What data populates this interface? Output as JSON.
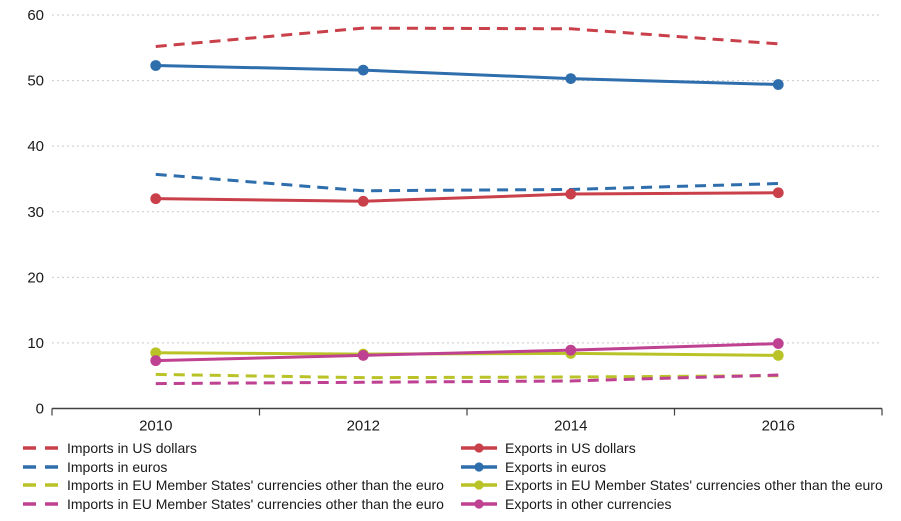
{
  "chart_data": {
    "type": "line",
    "title": "",
    "x_categories": [
      "2010",
      "2012",
      "2014",
      "2016"
    ],
    "ylim": [
      0,
      60
    ],
    "y_ticks": [
      0,
      10,
      20,
      30,
      40,
      50,
      60
    ],
    "grid": "horizontal dashed gridlines",
    "legend_position": "bottom, two columns: dashed import series left, solid export series right",
    "colors": {
      "red": "#c9404a",
      "blue": "#2e6ead",
      "yellow_green": "#b9c327",
      "magenta": "#bf4191",
      "gridline": "#c9c9c9",
      "axis": "#404040",
      "tick_text": "#1a1a1a"
    },
    "series": [
      {
        "name": "Imports in US dollars",
        "color": "#c9404a",
        "dash": true,
        "marker": false,
        "values": [
          55.2,
          58.0,
          57.9,
          55.6
        ]
      },
      {
        "name": "Imports in euros",
        "color": "#2e6ead",
        "dash": true,
        "marker": false,
        "values": [
          35.7,
          33.2,
          33.4,
          34.3
        ]
      },
      {
        "name": "Imports in EU Member States' currencies other than the euro",
        "color": "#b9c327",
        "dash": true,
        "marker": false,
        "values": [
          5.2,
          4.7,
          4.8,
          5.0
        ]
      },
      {
        "name": "Imports in EU Member States' currencies other than the euro",
        "color": "#bf4191",
        "dash": true,
        "marker": false,
        "values": [
          3.8,
          4.0,
          4.2,
          5.1
        ]
      },
      {
        "name": "Exports in US dollars",
        "color": "#c9404a",
        "dash": false,
        "marker": true,
        "values": [
          32.0,
          31.6,
          32.7,
          32.9
        ]
      },
      {
        "name": "Exports in euros",
        "color": "#2e6ead",
        "dash": false,
        "marker": true,
        "values": [
          52.3,
          51.6,
          50.3,
          49.4
        ]
      },
      {
        "name": "Exports in EU Member States' currencies other than the euro",
        "color": "#b9c327",
        "dash": false,
        "marker": true,
        "values": [
          8.5,
          8.3,
          8.4,
          8.1
        ]
      },
      {
        "name": "Exports in other currencies",
        "color": "#bf4191",
        "dash": false,
        "marker": true,
        "values": [
          7.3,
          8.1,
          8.9,
          9.9
        ]
      }
    ],
    "legend": {
      "left_indices": [
        0,
        1,
        2,
        3
      ],
      "right_indices": [
        4,
        5,
        6,
        7
      ]
    }
  }
}
